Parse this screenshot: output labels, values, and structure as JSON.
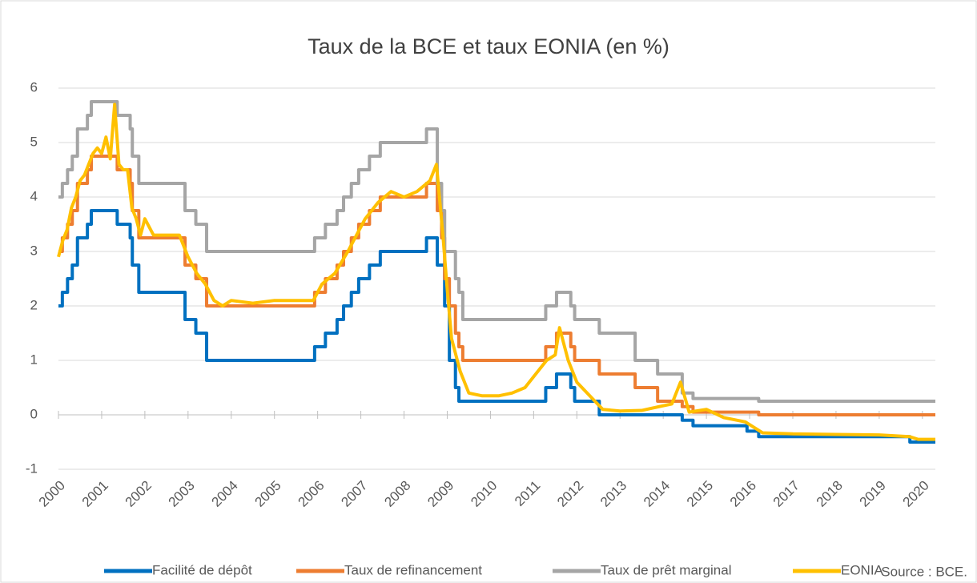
{
  "chart_data": {
    "type": "line",
    "title": "Taux de la BCE et taux EONIA (en %)",
    "source": "Source : BCE.",
    "step": true,
    "grid": true,
    "legend": "bottom",
    "xlim": [
      2000,
      2020.3
    ],
    "xticks": [
      2000,
      2001,
      2002,
      2003,
      2004,
      2005,
      2006,
      2007,
      2008,
      2009,
      2010,
      2011,
      2012,
      2013,
      2014,
      2015,
      2016,
      2017,
      2018,
      2019,
      2020
    ],
    "ylim": [
      -1,
      6
    ],
    "yticks": [
      -1,
      0,
      1,
      2,
      3,
      4,
      5,
      6
    ],
    "x": [
      2000.0,
      2000.09,
      2000.21,
      2000.32,
      2000.44,
      2000.67,
      2000.76,
      2001.36,
      2001.66,
      2001.71,
      2001.86,
      2002.93,
      2003.18,
      2003.43,
      2005.93,
      2006.18,
      2006.45,
      2006.6,
      2006.78,
      2006.95,
      2007.2,
      2007.45,
      2008.52,
      2008.77,
      2008.87,
      2008.94,
      2009.05,
      2009.19,
      2009.27,
      2009.36,
      2011.28,
      2011.53,
      2011.86,
      2011.95,
      2012.52,
      2013.35,
      2013.87,
      2014.44,
      2014.69,
      2015.94,
      2016.21,
      2019.71,
      2020.3
    ],
    "series": [
      {
        "name": "Facilité de dépôt",
        "color": "#0070c0",
        "values": [
          2,
          2.25,
          2.5,
          2.75,
          3.25,
          3.5,
          3.75,
          3.5,
          3.25,
          2.75,
          2.25,
          1.75,
          1.5,
          1,
          1.25,
          1.5,
          1.75,
          2,
          2.25,
          2.5,
          2.75,
          3,
          3.25,
          2.75,
          2.75,
          2,
          1,
          0.5,
          0.25,
          0.25,
          0.5,
          0.75,
          0.5,
          0.25,
          0,
          0,
          0,
          -0.1,
          -0.2,
          -0.3,
          -0.4,
          -0.5,
          -0.5
        ]
      },
      {
        "name": "Taux de refinancement",
        "color": "#ed7d31",
        "values": [
          3,
          3.25,
          3.5,
          3.75,
          4.25,
          4.5,
          4.75,
          4.5,
          4.25,
          3.75,
          3.25,
          2.75,
          2.5,
          2,
          2.25,
          2.5,
          2.75,
          3,
          3.25,
          3.5,
          3.75,
          4,
          4.25,
          3.75,
          3.25,
          2.5,
          2,
          1.5,
          1.25,
          1,
          1.25,
          1.5,
          1.25,
          1,
          0.75,
          0.5,
          0.25,
          0.15,
          0.05,
          0.05,
          0,
          0,
          0
        ]
      },
      {
        "name": "Taux de prêt marginal",
        "color": "#a5a5a5",
        "values": [
          4,
          4.25,
          4.5,
          4.75,
          5.25,
          5.5,
          5.75,
          5.5,
          5.25,
          4.75,
          4.25,
          3.75,
          3.5,
          3,
          3.25,
          3.5,
          3.75,
          4,
          4.25,
          4.5,
          4.75,
          5,
          5.25,
          4.25,
          3.75,
          3,
          3,
          2.5,
          2.25,
          1.75,
          2,
          2.25,
          2,
          1.75,
          1.5,
          1,
          0.75,
          0.4,
          0.3,
          0.3,
          0.25,
          0.25,
          0.25
        ]
      },
      {
        "name": "EONIA",
        "color": "#ffc000",
        "step": false,
        "x": [
          2000.0,
          2000.1,
          2000.2,
          2000.3,
          2000.4,
          2000.5,
          2000.6,
          2000.7,
          2000.8,
          2000.9,
          2001.0,
          2001.1,
          2001.2,
          2001.3,
          2001.4,
          2001.5,
          2001.6,
          2001.7,
          2001.8,
          2001.9,
          2002.0,
          2002.2,
          2002.5,
          2002.8,
          2003.0,
          2003.2,
          2003.4,
          2003.6,
          2003.8,
          2004.0,
          2004.5,
          2005.0,
          2005.5,
          2005.9,
          2006.1,
          2006.4,
          2006.7,
          2006.9,
          2007.1,
          2007.4,
          2007.7,
          2008.0,
          2008.3,
          2008.6,
          2008.75,
          2008.9,
          2009.0,
          2009.1,
          2009.3,
          2009.5,
          2009.8,
          2010.2,
          2010.5,
          2010.8,
          2011.0,
          2011.3,
          2011.5,
          2011.6,
          2011.8,
          2012.0,
          2012.3,
          2012.6,
          2013.0,
          2013.5,
          2013.9,
          2014.2,
          2014.4,
          2014.6,
          2015.0,
          2015.4,
          2015.9,
          2016.3,
          2017.0,
          2018.0,
          2019.0,
          2019.7,
          2019.9,
          2020.3
        ],
        "values": [
          2.9,
          3.2,
          3.4,
          3.8,
          4.0,
          4.3,
          4.4,
          4.6,
          4.8,
          4.9,
          4.8,
          5.1,
          4.7,
          5.7,
          4.6,
          4.5,
          4.5,
          3.8,
          3.6,
          3.3,
          3.6,
          3.3,
          3.3,
          3.3,
          2.9,
          2.6,
          2.4,
          2.1,
          2.0,
          2.1,
          2.05,
          2.1,
          2.1,
          2.1,
          2.4,
          2.6,
          3.0,
          3.3,
          3.6,
          3.9,
          4.1,
          4.0,
          4.1,
          4.3,
          4.6,
          3.3,
          2.3,
          1.4,
          0.8,
          0.4,
          0.35,
          0.35,
          0.4,
          0.5,
          0.7,
          1.0,
          1.1,
          1.6,
          1.0,
          0.6,
          0.35,
          0.1,
          0.07,
          0.08,
          0.15,
          0.2,
          0.6,
          0.05,
          0.1,
          -0.05,
          -0.13,
          -0.33,
          -0.35,
          -0.36,
          -0.37,
          -0.4,
          -0.45,
          -0.45
        ]
      }
    ]
  }
}
